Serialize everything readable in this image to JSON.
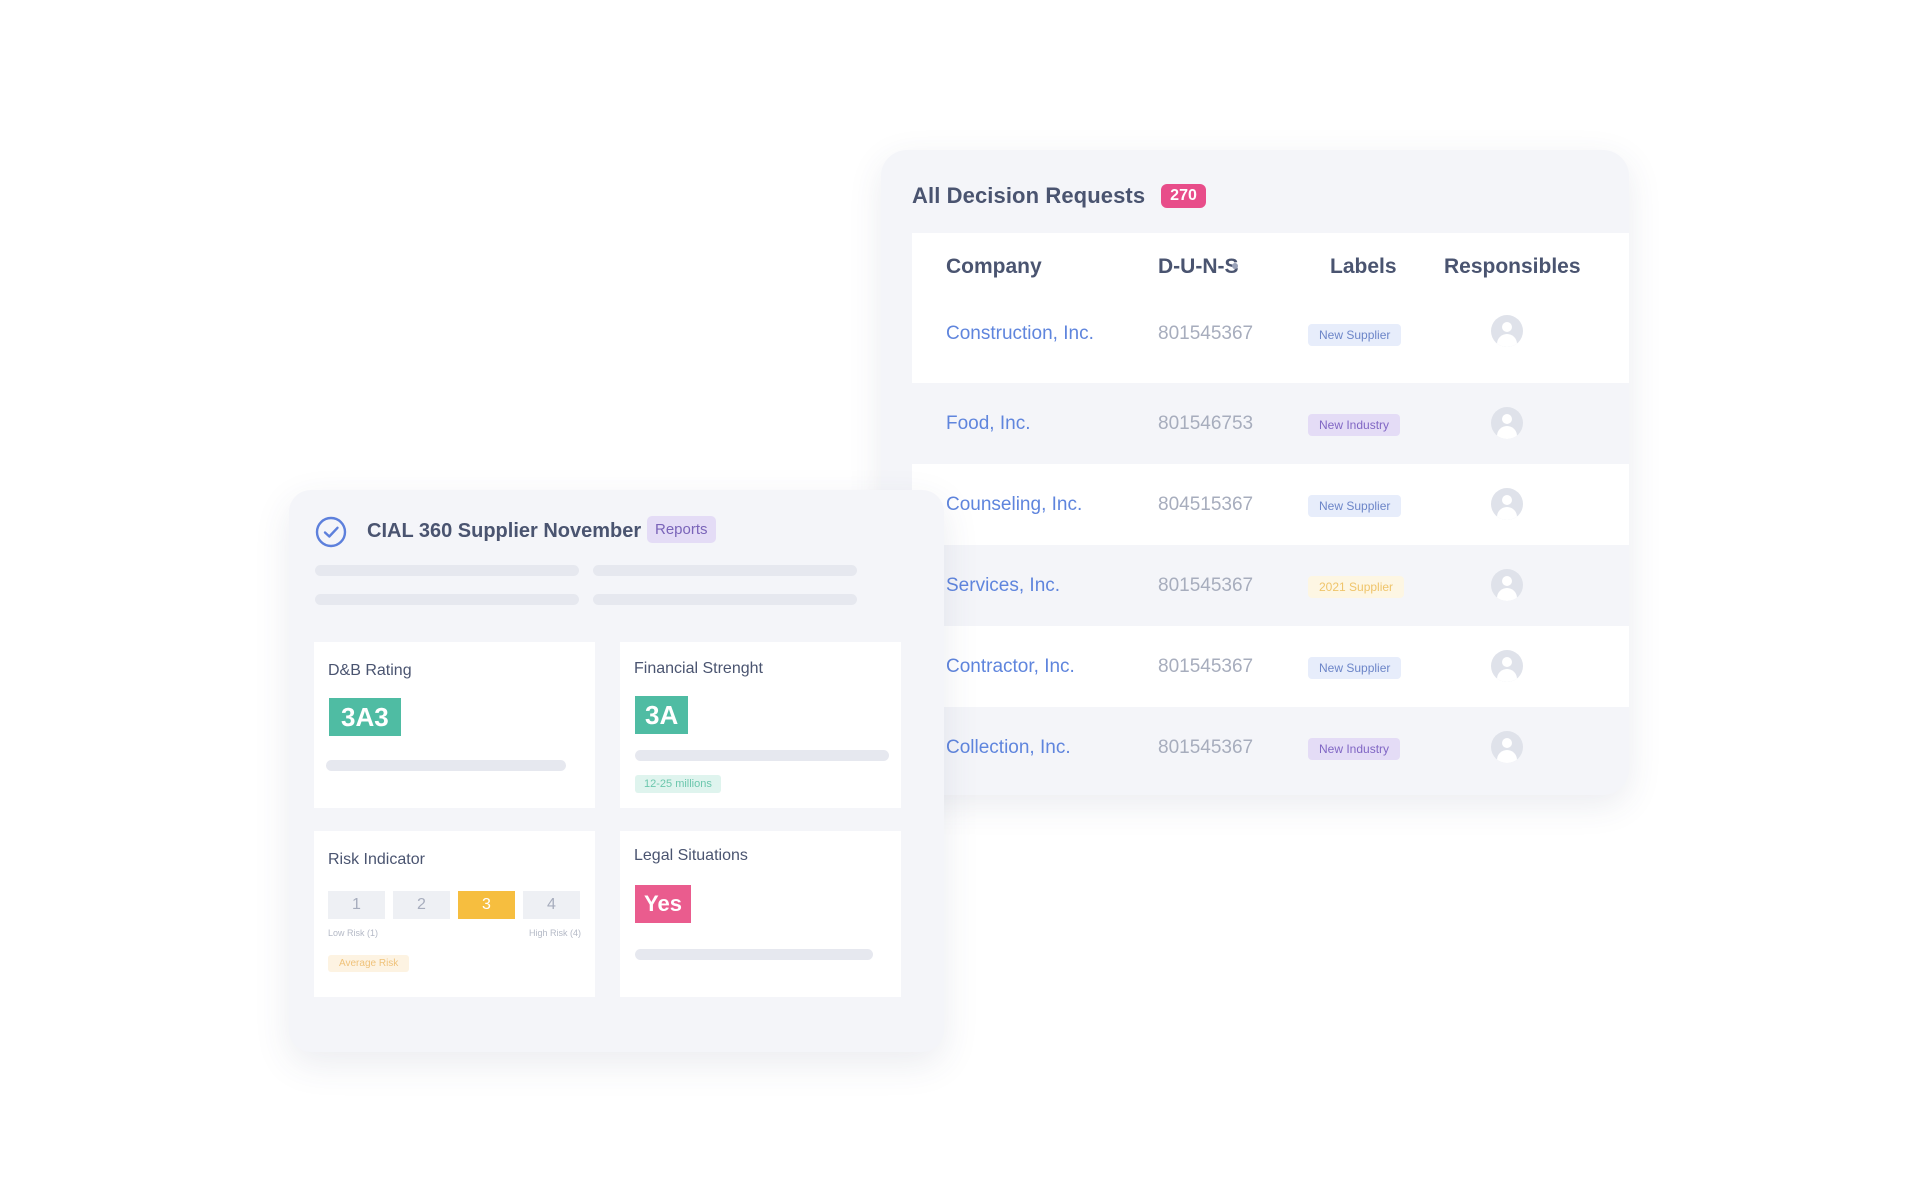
{
  "requests": {
    "title": "All Decision Requests",
    "count": "270",
    "columns": {
      "company": "Company",
      "duns": "D-U-N-S",
      "labels": "Labels",
      "responsibles": "Responsibles"
    },
    "rows": [
      {
        "company": "Construction, Inc.",
        "duns": "801545367",
        "label": "New Supplier",
        "label_type": "supplier"
      },
      {
        "company": "Food, Inc.",
        "duns": "801546753",
        "label": "New Industry",
        "label_type": "industry"
      },
      {
        "company": "Counseling, Inc.",
        "duns": "804515367",
        "label": "New Supplier",
        "label_type": "supplier"
      },
      {
        "company": "Services, Inc.",
        "duns": "801545367",
        "label": "2021 Supplier",
        "label_type": "year"
      },
      {
        "company": "Contractor, Inc.",
        "duns": "801545367",
        "label": "New Supplier",
        "label_type": "supplier"
      },
      {
        "company": "Collection, Inc.",
        "duns": "801545367",
        "label": "New Industry",
        "label_type": "industry"
      }
    ]
  },
  "report": {
    "title": "CIAL 360 Supplier November",
    "tag": "Reports",
    "cards": {
      "db_rating": {
        "title": "D&B Rating",
        "value": "3A3"
      },
      "financial": {
        "title": "Financial Strenght",
        "value": "3A",
        "range": "12-25 millions"
      },
      "risk": {
        "title": "Risk Indicator",
        "levels": [
          "1",
          "2",
          "3",
          "4"
        ],
        "selected_level": 3,
        "low_caption": "Low Risk (1)",
        "high_caption": "High Risk (4)",
        "status": "Average Risk"
      },
      "legal": {
        "title": "Legal Situations",
        "value": "Yes"
      }
    }
  },
  "colors": {
    "accent_pink": "#e84d8a",
    "link_blue": "#5f85dd",
    "rating_green": "#4fbca3",
    "risk_yellow": "#f6be3f"
  },
  "icons": {
    "status": "check-circle-icon",
    "responsible": "user-avatar-icon"
  }
}
